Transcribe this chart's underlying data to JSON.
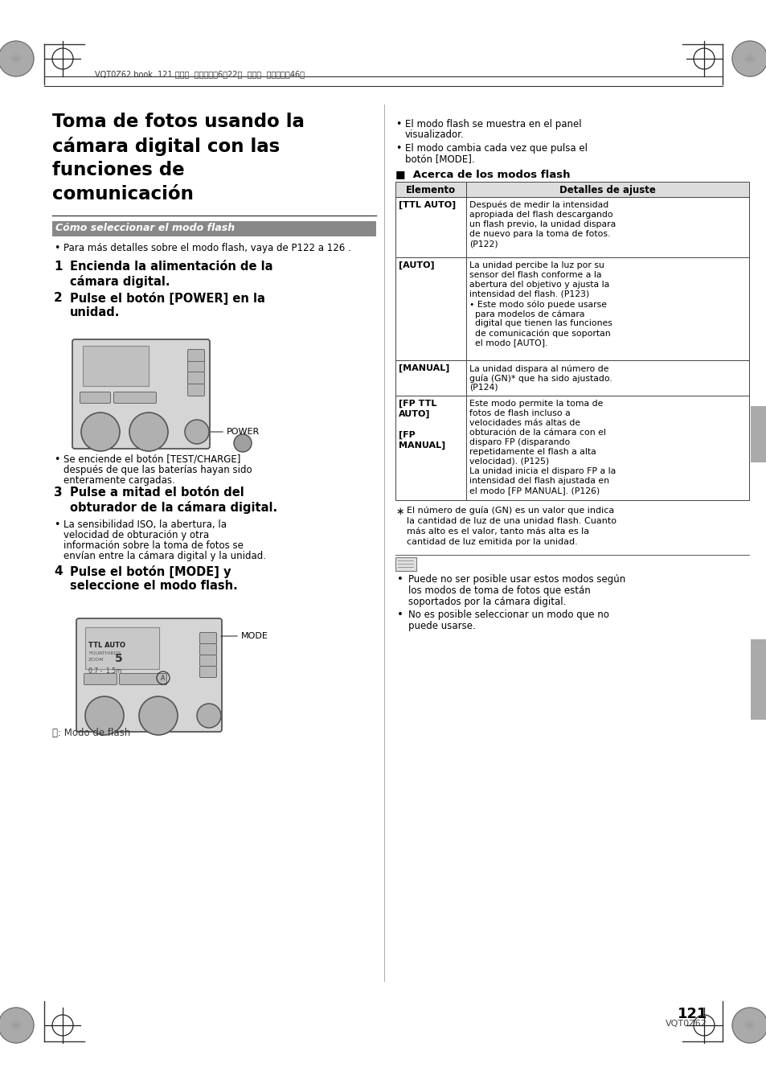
{
  "page_bg": "#ffffff",
  "header_text": "VQT0Z62.book  121 ページ  ２００６年6月22日  木曜日  午前１１時46分",
  "title_line1": "Toma de fotos usando la",
  "title_line2": "cámara digital con las",
  "title_line3": "funciones de",
  "title_line4": "comunicación",
  "section_banner": "Cómo seleccionar el modo flash",
  "bullet_intro": "Para más detalles sobre el modo flash, vaya de P122 a 126 .",
  "step1_text_a": "Encienda la alimentación de la",
  "step1_text_b": "cámara digital.",
  "step2_text_a": "Pulse el botón [POWER] en la",
  "step2_text_b": "unidad.",
  "power_label": "POWER",
  "bullet2_a": "Se enciende el botón [TEST/CHARGE]",
  "bullet2_b": "después de que las baterías hayan sido",
  "bullet2_c": "enteramente cargadas.",
  "step3_text_a": "Pulse a mitad el botón del",
  "step3_text_b": "obturador de la cámara digital.",
  "bullet3_a": "La sensibilidad ISO, la abertura, la",
  "bullet3_b": "velocidad de obturación y otra",
  "bullet3_c": "información sobre la toma de fotos se",
  "bullet3_d": "envían entre la cámara digital y la unidad.",
  "step4_text_a": "Pulse el botón [MODE] y",
  "step4_text_b": "seleccione el modo flash.",
  "mode_label": "MODE",
  "caption_A": "Ⓐ: Modo de flash",
  "right_bullet1a": "El modo flash se muestra en el panel",
  "right_bullet1b": "visualizador.",
  "right_bullet2a": "El modo cambia cada vez que pulsa el",
  "right_bullet2b": "botón [MODE].",
  "table_title": "■  Acerca de los modos flash",
  "table_header_col1": "Elemento",
  "table_header_col2": "Detalles de ajuste",
  "col1_ttl": "[TTL AUTO]",
  "col2_ttl": [
    "Después de medir la intensidad",
    "apropiada del flash descargando",
    "un flash previo, la unidad dispara",
    "de nuevo para la toma de fotos.",
    "(P122)"
  ],
  "col1_auto": "[AUTO]",
  "col2_auto": [
    "La unidad percibe la luz por su",
    "sensor del flash conforme a la",
    "abertura del objetivo y ajusta la",
    "intensidad del flash. (P123)",
    "• Este modo sólo puede usarse",
    "  para modelos de cámara",
    "  digital que tienen las funciones",
    "  de comunicación que soportan",
    "  el modo [AUTO]."
  ],
  "col1_manual": "[MANUAL]",
  "col2_manual": [
    "La unidad dispara al número de",
    "guía (GN)* que ha sido ajustado.",
    "(P124)"
  ],
  "col1_fp1": "[FP TTL",
  "col1_fp2": "AUTO]",
  "col1_fp3": "[FP",
  "col1_fp4": "MANUAL]",
  "col2_fp": [
    "Este modo permite la toma de",
    "fotos de flash incluso a",
    "velocidades más altas de",
    "obturación de la cámara con el",
    "disparo FP (disparando",
    "repetidamente el flash a alta",
    "velocidad). (P125)",
    "La unidad inicia el disparo FP a la",
    "intensidad del flash ajustada en",
    "el modo [FP MANUAL]. (P126)"
  ],
  "fn_star": "∗",
  "fn_text": [
    "El número de guía (GN) es un valor que indica",
    "la cantidad de luz de una unidad flash. Cuanto",
    "más alto es el valor, tanto más alta es la",
    "cantidad de luz emitida por la unidad."
  ],
  "note1a": "Puede no ser posible usar estos modos según",
  "note1b": "los modos de toma de fotos que están",
  "note1c": "soportados por la cámara digital.",
  "note2a": "No es posible seleccionar un modo que no",
  "note2b": "puede usarse.",
  "page_num": "121",
  "page_code": "VQT0Z62"
}
